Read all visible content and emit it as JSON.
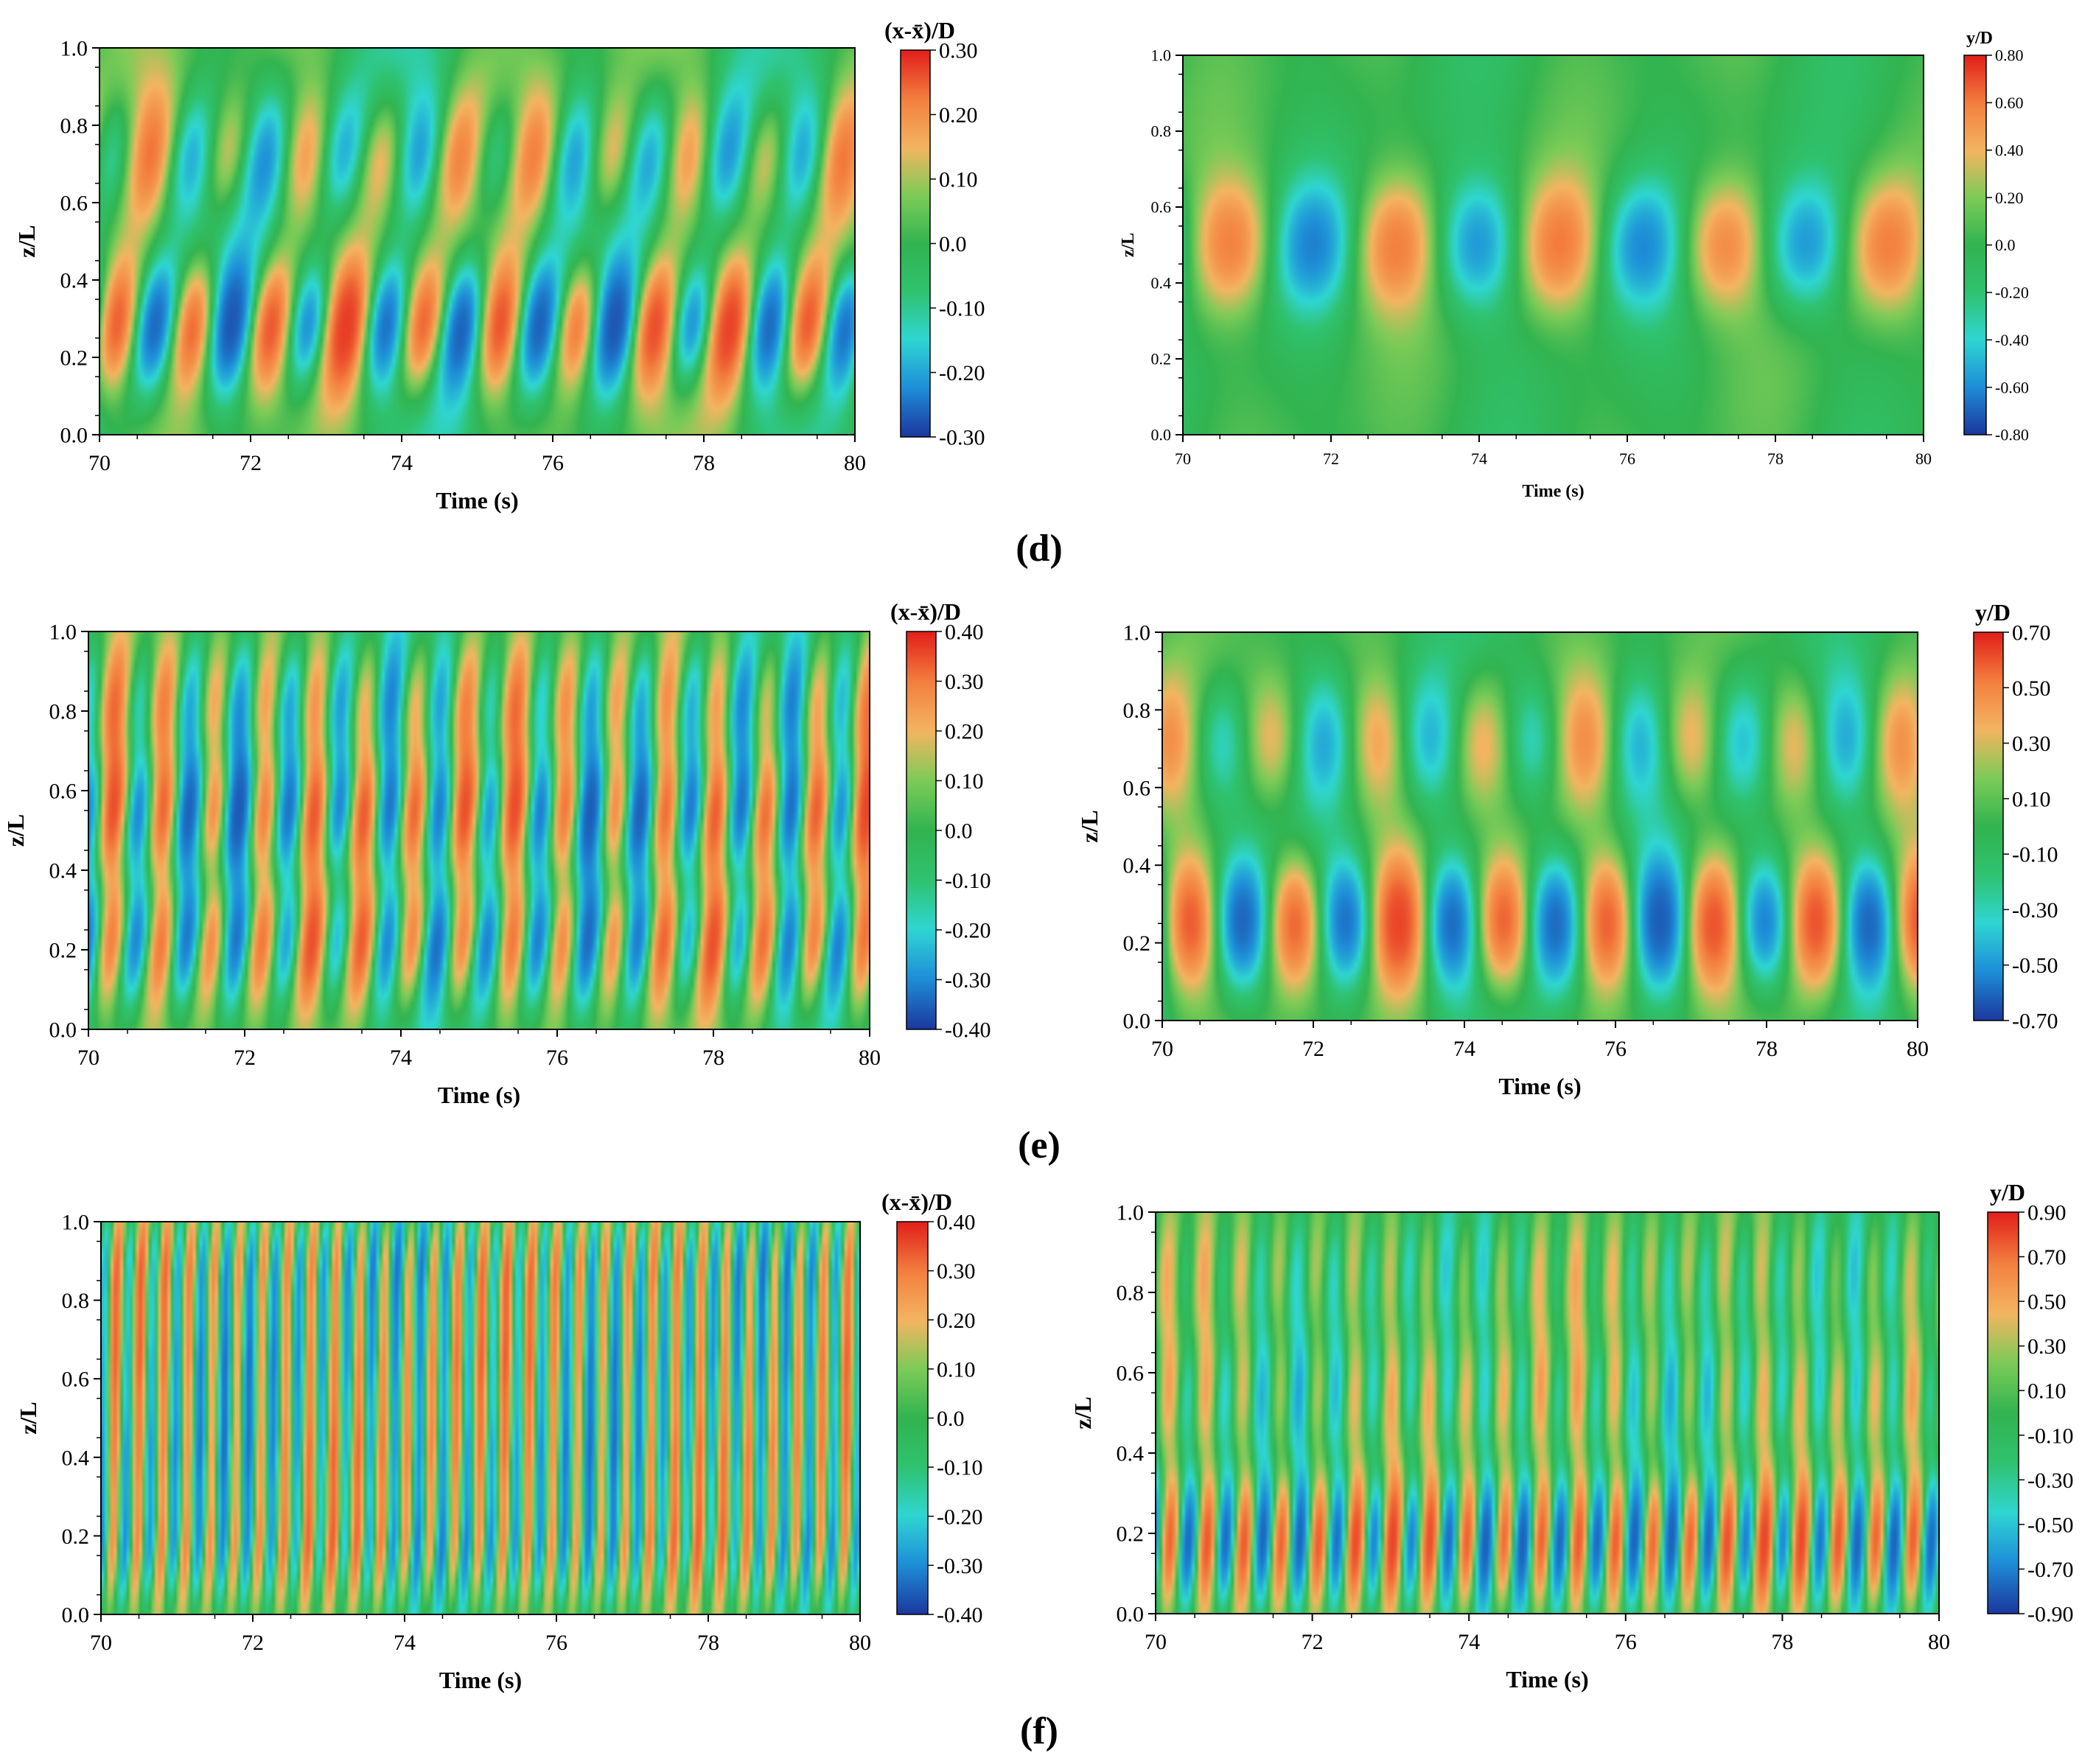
{
  "panel_labels": [
    "(d)",
    "(e)",
    "(f)"
  ],
  "colorscale": {
    "stops": [
      "#1c3aa0",
      "#1e8fd8",
      "#2fd6d2",
      "#2fc26f",
      "#32b450",
      "#7ccb57",
      "#f3b561",
      "#f3803f",
      "#e3221c"
    ]
  },
  "chart_data": [
    {
      "type": "heatmap",
      "panel": "(d)",
      "title": "",
      "xlabel": "Time (s)",
      "ylabel": "z/L",
      "xlim": [
        70,
        80
      ],
      "ylim": [
        0.0,
        1.0
      ],
      "x_ticks": [
        "70",
        "72",
        "74",
        "76",
        "78",
        "80"
      ],
      "y_ticks": [
        "0.0",
        "0.2",
        "0.4",
        "0.6",
        "0.8",
        "1.0"
      ],
      "colorbar": {
        "label": "(x-x̄)/D",
        "ticks": [
          "0.30",
          "0.20",
          "0.10",
          "0.0",
          "-0.10",
          "-0.20",
          "-0.30"
        ],
        "range": [
          -0.3,
          0.3
        ]
      },
      "pattern": {
        "freq": 0.98,
        "tilt": -1.6,
        "amp": 0.27,
        "modes": [
          [
            0.55,
            0.72
          ],
          [
            1.0,
            0.28
          ]
        ],
        "noise": 0.35
      }
    },
    {
      "type": "heatmap",
      "panel": "(d)",
      "title": "",
      "xlabel": "Time (s)",
      "ylabel": "z/L",
      "xlim": [
        70,
        80
      ],
      "ylim": [
        0.0,
        1.0
      ],
      "x_ticks": [
        "70",
        "72",
        "74",
        "76",
        "78",
        "80"
      ],
      "y_ticks": [
        "0.0",
        "0.2",
        "0.4",
        "0.6",
        "0.8",
        "1.0"
      ],
      "colorbar": {
        "label": "y/D",
        "ticks": [
          "0.80",
          "0.60",
          "0.40",
          "0.20",
          "0.0",
          "-0.20",
          "-0.40",
          "-0.60",
          "-0.80"
        ],
        "range": [
          -0.8,
          0.8
        ]
      },
      "pattern": {
        "freq": 0.45,
        "tilt": -0.2,
        "amp": 0.72,
        "modes": [
          [
            0.7,
            0.5
          ]
        ],
        "noise": 0.15
      }
    },
    {
      "type": "heatmap",
      "panel": "(e)",
      "title": "",
      "xlabel": "Time (s)",
      "ylabel": "z/L",
      "xlim": [
        70,
        80
      ],
      "ylim": [
        0.0,
        1.0
      ],
      "x_ticks": [
        "70",
        "72",
        "74",
        "76",
        "78",
        "80"
      ],
      "y_ticks": [
        "0.0",
        "0.2",
        "0.4",
        "0.6",
        "0.8",
        "1.0"
      ],
      "colorbar": {
        "label": "(x-x̄)/D",
        "ticks": [
          "0.40",
          "0.30",
          "0.20",
          "0.10",
          "0.0",
          "-0.10",
          "-0.20",
          "-0.30",
          "-0.40"
        ],
        "range": [
          -0.4,
          0.4
        ]
      },
      "pattern": {
        "freq": 1.55,
        "tilt": -2.2,
        "amp": 0.33,
        "modes": [
          [
            0.8,
            0.22
          ],
          [
            0.9,
            0.55
          ],
          [
            0.6,
            0.82
          ]
        ],
        "noise": 0.3
      }
    },
    {
      "type": "heatmap",
      "panel": "(e)",
      "title": "",
      "xlabel": "Time (s)",
      "ylabel": "z/L",
      "xlim": [
        70,
        80
      ],
      "ylim": [
        0.0,
        1.0
      ],
      "x_ticks": [
        "70",
        "72",
        "74",
        "76",
        "78",
        "80"
      ],
      "y_ticks": [
        "0.0",
        "0.2",
        "0.4",
        "0.6",
        "0.8",
        "1.0"
      ],
      "colorbar": {
        "label": "y/D",
        "ticks": [
          "0.70",
          "0.50",
          "0.30",
          "0.10",
          "-0.10",
          "-0.30",
          "-0.50",
          "-0.70"
        ],
        "range": [
          -0.7,
          0.7
        ]
      },
      "pattern": {
        "freq": 0.72,
        "tilt": 0.0,
        "amp": 0.62,
        "modes": [
          [
            1.0,
            0.25
          ],
          [
            0.5,
            0.72
          ]
        ],
        "noise": 0.2
      }
    },
    {
      "type": "heatmap",
      "panel": "(f)",
      "title": "",
      "xlabel": "Time (s)",
      "ylabel": "z/L",
      "xlim": [
        70,
        80
      ],
      "ylim": [
        0.0,
        1.0
      ],
      "x_ticks": [
        "70",
        "72",
        "74",
        "76",
        "78",
        "80"
      ],
      "y_ticks": [
        "0.0",
        "0.2",
        "0.4",
        "0.6",
        "0.8",
        "1.0"
      ],
      "colorbar": {
        "label": "(x-x̄)/D",
        "ticks": [
          "0.40",
          "0.30",
          "0.20",
          "0.10",
          "0.0",
          "-0.10",
          "-0.20",
          "-0.30",
          "-0.40"
        ],
        "range": [
          -0.4,
          0.4
        ]
      },
      "pattern": {
        "freq": 3.1,
        "tilt": -3.0,
        "amp": 0.3,
        "modes": [
          [
            0.7,
            0.18
          ],
          [
            0.7,
            0.42
          ],
          [
            0.7,
            0.65
          ],
          [
            0.7,
            0.88
          ]
        ],
        "noise": 0.25
      }
    },
    {
      "type": "heatmap",
      "panel": "(f)",
      "title": "",
      "xlabel": "Time (s)",
      "ylabel": "z/L",
      "xlim": [
        70,
        80
      ],
      "ylim": [
        0.0,
        1.0
      ],
      "x_ticks": [
        "70",
        "72",
        "74",
        "76",
        "78",
        "80"
      ],
      "y_ticks": [
        "0.0",
        "0.2",
        "0.4",
        "0.6",
        "0.8",
        "1.0"
      ],
      "colorbar": {
        "label": "y/D",
        "ticks": [
          "0.90",
          "0.70",
          "0.50",
          "0.30",
          "0.10",
          "-0.10",
          "-0.30",
          "-0.50",
          "-0.70",
          "-0.90"
        ],
        "range": [
          -0.9,
          0.9
        ]
      },
      "pattern": {
        "freq": 2.1,
        "tilt": -1.4,
        "amp": 0.82,
        "modes": [
          [
            1.0,
            0.18
          ],
          [
            0.45,
            0.55
          ],
          [
            0.35,
            0.85
          ]
        ],
        "noise": 0.2
      }
    }
  ]
}
